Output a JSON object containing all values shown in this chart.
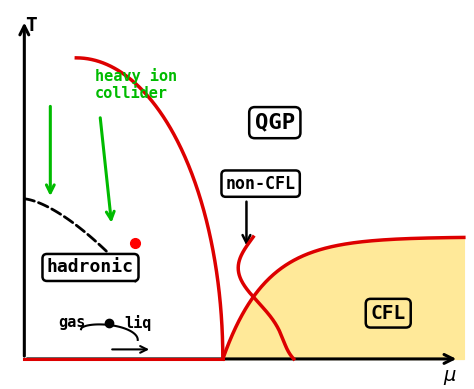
{
  "background_color": "#ffffff",
  "phase_boundary_color": "#dd0000",
  "green_color": "#00bb00",
  "cfl_fill_color": "#ffe999",
  "cfl_fill_alpha": 1.0,
  "hadronic_label": "hadronic",
  "qgp_label": "QGP",
  "non_cfl_label": "non-CFL",
  "cfl_label": "CFL",
  "gas_label": "gas",
  "liq_label": "liq",
  "heavy_ion_label": "heavy ion\ncollider",
  "xlim": [
    0,
    10
  ],
  "ylim": [
    0,
    10
  ]
}
